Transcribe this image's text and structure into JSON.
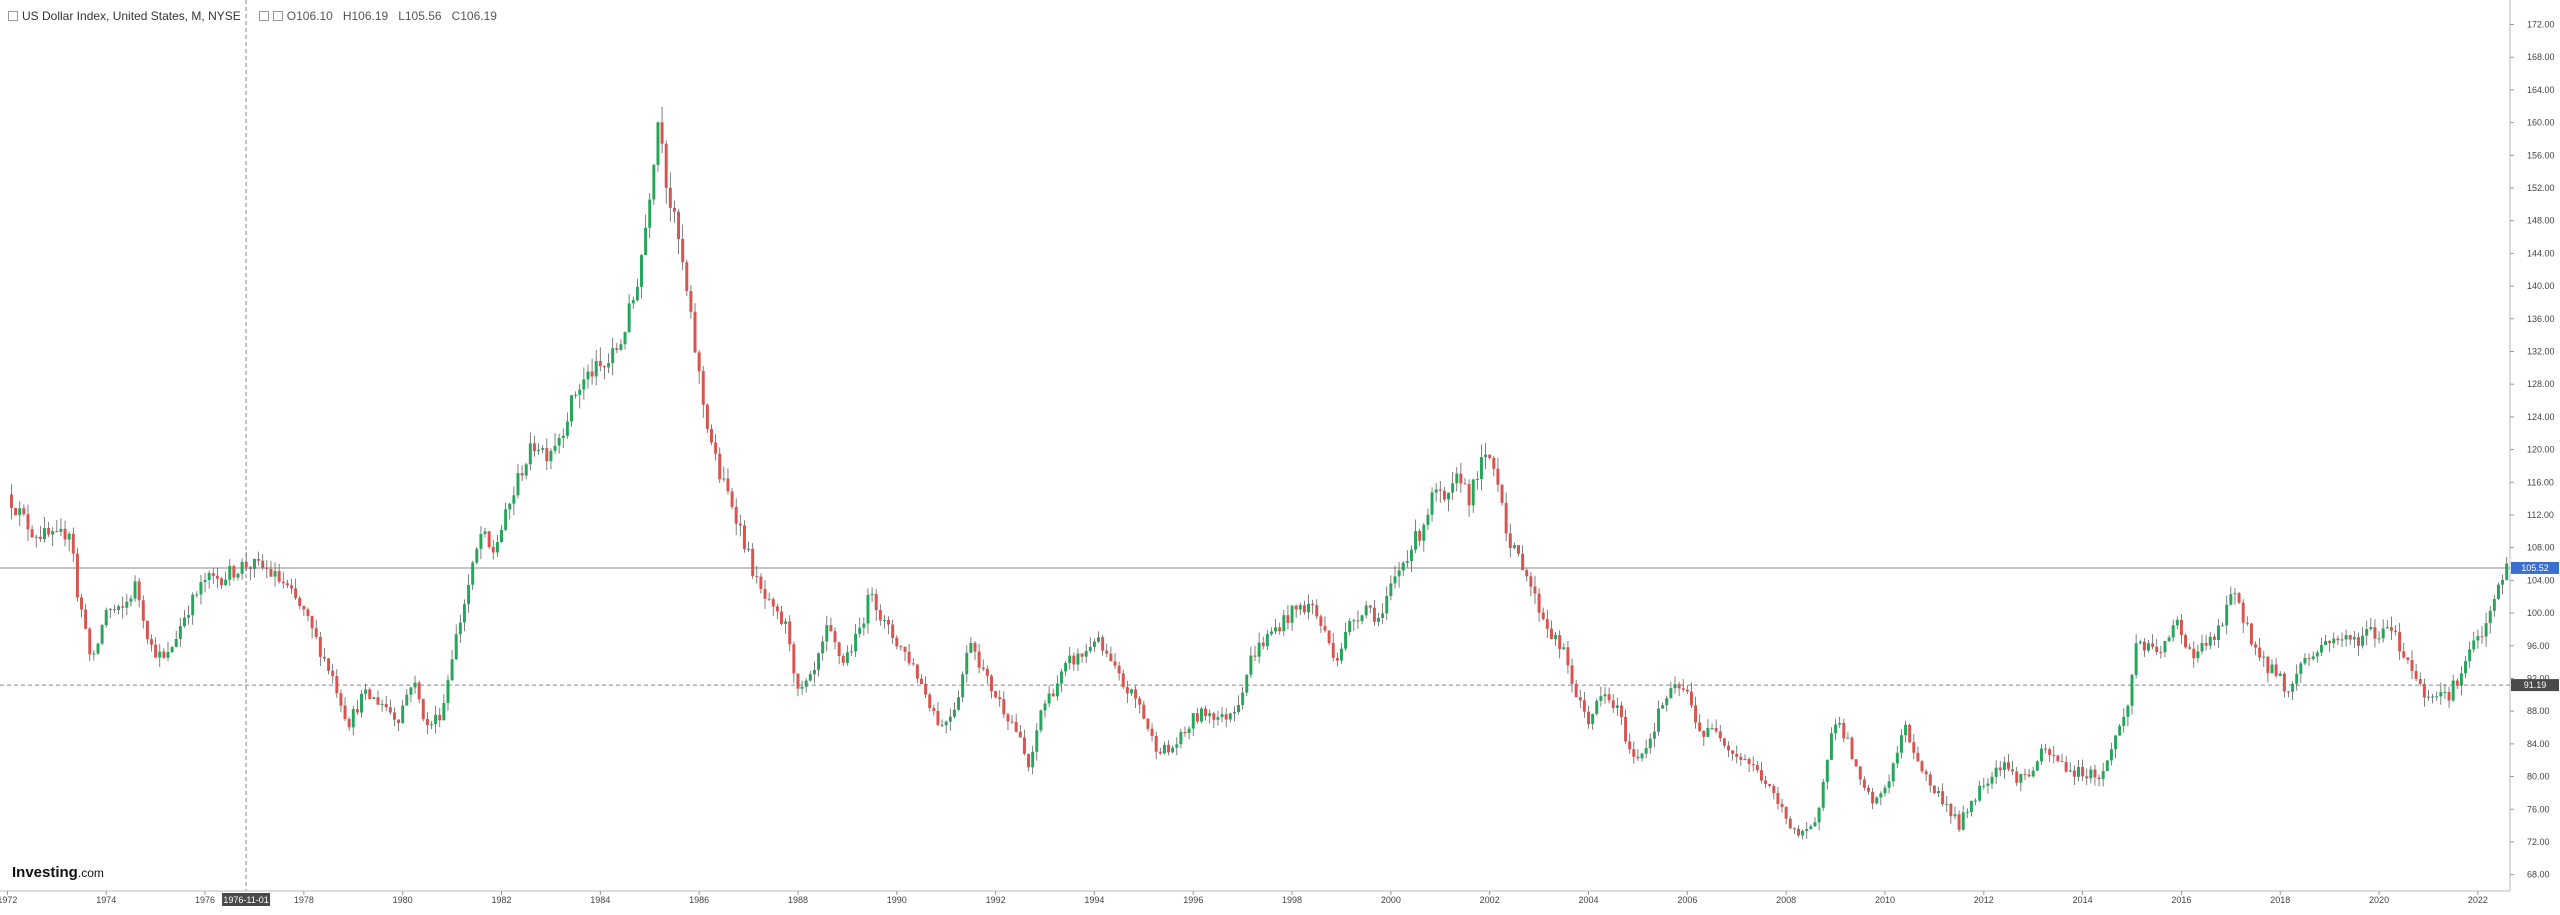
{
  "legend": {
    "title": "US Dollar Index, United States, M, NYSE",
    "open": "O106.10",
    "high": "H106.19",
    "low": "L105.56",
    "close": "C106.19"
  },
  "logo": {
    "brand": "Investing",
    "domain": ".com"
  },
  "crosshair": {
    "date_label": "1976-11-01",
    "x": 1976.83,
    "price_label": "91.19",
    "y": 91.19
  },
  "last_price": {
    "label": "105.52",
    "value": 105.52
  },
  "colors": {
    "up": "#26a65b",
    "down": "#d9534f",
    "last_price_bg": "#3a6fd0",
    "crosshair_bg": "#4a4a4a"
  },
  "chart_data": {
    "type": "candlestick",
    "title": "US Dollar Index, United States, M, NYSE",
    "xlim": [
      1971.85,
      2022.65
    ],
    "ylim": [
      66,
      175
    ],
    "x_ticks": [
      "1972",
      "1974",
      "1976",
      "1978",
      "1980",
      "1982",
      "1984",
      "1986",
      "1988",
      "1990",
      "1992",
      "1994",
      "1996",
      "1998",
      "2000",
      "2002",
      "2004",
      "2006",
      "2008",
      "2010",
      "2012",
      "2014",
      "2016",
      "2018",
      "2020",
      "2022"
    ],
    "y_ticks": [
      "68.00",
      "72.00",
      "76.00",
      "80.00",
      "84.00",
      "88.00",
      "92.00",
      "96.00",
      "100.00",
      "104.00",
      "108.00",
      "112.00",
      "116.00",
      "120.00",
      "124.00",
      "128.00",
      "132.00",
      "136.00",
      "140.00",
      "144.00",
      "148.00",
      "152.00",
      "156.00",
      "160.00",
      "164.00",
      "168.00",
      "172.00"
    ],
    "grid": false,
    "price_path": [
      [
        1972.0,
        114.5
      ],
      [
        1972.5,
        110.0
      ],
      [
        1973.0,
        109.0
      ],
      [
        1973.3,
        110.5
      ],
      [
        1973.4,
        102.0
      ],
      [
        1973.6,
        98.5
      ],
      [
        1973.7,
        93.0
      ],
      [
        1974.0,
        100.5
      ],
      [
        1974.3,
        100.0
      ],
      [
        1974.6,
        103.5
      ],
      [
        1974.9,
        96.0
      ],
      [
        1975.2,
        94.0
      ],
      [
        1975.6,
        100.0
      ],
      [
        1976.0,
        104.0
      ],
      [
        1976.4,
        104.5
      ],
      [
        1976.8,
        106.0
      ],
      [
        1977.2,
        105.5
      ],
      [
        1977.6,
        103.5
      ],
      [
        1978.0,
        100.0
      ],
      [
        1978.3,
        96.0
      ],
      [
        1978.6,
        92.0
      ],
      [
        1978.9,
        86.5
      ],
      [
        1979.2,
        90.0
      ],
      [
        1979.6,
        89.0
      ],
      [
        1979.9,
        87.0
      ],
      [
        1980.2,
        92.0
      ],
      [
        1980.5,
        86.0
      ],
      [
        1980.8,
        88.0
      ],
      [
        1981.0,
        95.0
      ],
      [
        1981.3,
        102.5
      ],
      [
        1981.6,
        110.0
      ],
      [
        1981.8,
        107.0
      ],
      [
        1982.1,
        112.0
      ],
      [
        1982.4,
        117.5
      ],
      [
        1982.7,
        121.0
      ],
      [
        1982.9,
        119.5
      ],
      [
        1983.2,
        122.0
      ],
      [
        1983.5,
        127.0
      ],
      [
        1983.8,
        129.5
      ],
      [
        1984.1,
        130.0
      ],
      [
        1984.4,
        133.0
      ],
      [
        1984.7,
        139.0
      ],
      [
        1984.9,
        146.5
      ],
      [
        1985.1,
        157.0
      ],
      [
        1985.2,
        162.0
      ],
      [
        1985.35,
        152.0
      ],
      [
        1985.6,
        145.0
      ],
      [
        1985.9,
        133.0
      ],
      [
        1986.1,
        125.0
      ],
      [
        1986.4,
        117.0
      ],
      [
        1986.7,
        113.0
      ],
      [
        1986.9,
        109.0
      ],
      [
        1987.2,
        103.0
      ],
      [
        1987.5,
        100.0
      ],
      [
        1987.8,
        98.0
      ],
      [
        1988.0,
        90.0
      ],
      [
        1988.3,
        92.0
      ],
      [
        1988.6,
        98.0
      ],
      [
        1988.9,
        94.0
      ],
      [
        1989.2,
        97.0
      ],
      [
        1989.5,
        103.0
      ],
      [
        1989.7,
        99.0
      ],
      [
        1990.0,
        96.5
      ],
      [
        1990.3,
        94.0
      ],
      [
        1990.6,
        90.0
      ],
      [
        1990.9,
        86.0
      ],
      [
        1991.2,
        89.0
      ],
      [
        1991.5,
        97.0
      ],
      [
        1991.8,
        92.0
      ],
      [
        1992.1,
        89.0
      ],
      [
        1992.4,
        86.0
      ],
      [
        1992.7,
        80.5
      ],
      [
        1992.9,
        88.0
      ],
      [
        1993.2,
        91.0
      ],
      [
        1993.5,
        94.0
      ],
      [
        1993.8,
        95.0
      ],
      [
        1994.0,
        97.0
      ],
      [
        1994.3,
        94.0
      ],
      [
        1994.6,
        91.0
      ],
      [
        1994.9,
        89.0
      ],
      [
        1995.2,
        84.0
      ],
      [
        1995.5,
        83.0
      ],
      [
        1995.8,
        85.0
      ],
      [
        1996.0,
        87.0
      ],
      [
        1996.3,
        88.0
      ],
      [
        1996.6,
        87.0
      ],
      [
        1996.9,
        89.0
      ],
      [
        1997.2,
        95.0
      ],
      [
        1997.5,
        97.0
      ],
      [
        1997.8,
        99.0
      ],
      [
        1998.1,
        100.5
      ],
      [
        1998.4,
        101.0
      ],
      [
        1998.7,
        97.0
      ],
      [
        1998.9,
        94.5
      ],
      [
        1999.2,
        99.0
      ],
      [
        1999.5,
        101.0
      ],
      [
        1999.8,
        99.0
      ],
      [
        2000.0,
        103.0
      ],
      [
        2000.3,
        107.0
      ],
      [
        2000.6,
        110.0
      ],
      [
        2000.9,
        115.0
      ],
      [
        2001.1,
        113.0
      ],
      [
        2001.4,
        117.0
      ],
      [
        2001.6,
        114.0
      ],
      [
        2001.8,
        118.0
      ],
      [
        2002.0,
        119.0
      ],
      [
        2002.2,
        116.0
      ],
      [
        2002.4,
        108.0
      ],
      [
        2002.7,
        106.0
      ],
      [
        2002.9,
        102.0
      ],
      [
        2003.2,
        98.0
      ],
      [
        2003.5,
        95.0
      ],
      [
        2003.8,
        89.0
      ],
      [
        2004.0,
        87.0
      ],
      [
        2004.3,
        90.0
      ],
      [
        2004.6,
        88.0
      ],
      [
        2004.9,
        82.0
      ],
      [
        2005.2,
        84.0
      ],
      [
        2005.5,
        89.0
      ],
      [
        2005.8,
        91.0
      ],
      [
        2006.0,
        90.0
      ],
      [
        2006.3,
        85.0
      ],
      [
        2006.6,
        86.0
      ],
      [
        2006.9,
        83.0
      ],
      [
        2007.2,
        82.0
      ],
      [
        2007.5,
        80.0
      ],
      [
        2007.8,
        77.0
      ],
      [
        2008.0,
        75.0
      ],
      [
        2008.3,
        72.5
      ],
      [
        2008.6,
        74.0
      ],
      [
        2008.8,
        82.0
      ],
      [
        2009.0,
        87.0
      ],
      [
        2009.2,
        85.0
      ],
      [
        2009.5,
        79.0
      ],
      [
        2009.8,
        76.5
      ],
      [
        2010.1,
        80.0
      ],
      [
        2010.4,
        86.0
      ],
      [
        2010.6,
        83.0
      ],
      [
        2010.9,
        79.0
      ],
      [
        2011.2,
        77.0
      ],
      [
        2011.5,
        74.0
      ],
      [
        2011.8,
        77.5
      ],
      [
        2012.1,
        80.0
      ],
      [
        2012.4,
        82.0
      ],
      [
        2012.6,
        80.0
      ],
      [
        2012.9,
        80.0
      ],
      [
        2013.2,
        83.0
      ],
      [
        2013.5,
        82.0
      ],
      [
        2013.8,
        80.5
      ],
      [
        2014.1,
        80.5
      ],
      [
        2014.4,
        80.0
      ],
      [
        2014.6,
        84.0
      ],
      [
        2014.9,
        88.0
      ],
      [
        2015.1,
        97.0
      ],
      [
        2015.4,
        95.0
      ],
      [
        2015.7,
        96.0
      ],
      [
        2015.9,
        99.0
      ],
      [
        2016.2,
        95.0
      ],
      [
        2016.5,
        96.0
      ],
      [
        2016.8,
        98.0
      ],
      [
        2017.0,
        102.5
      ],
      [
        2017.3,
        99.0
      ],
      [
        2017.6,
        94.0
      ],
      [
        2017.9,
        93.0
      ],
      [
        2018.2,
        90.0
      ],
      [
        2018.4,
        94.0
      ],
      [
        2018.7,
        95.0
      ],
      [
        2018.9,
        96.5
      ],
      [
        2019.2,
        97.0
      ],
      [
        2019.5,
        96.5
      ],
      [
        2019.8,
        98.0
      ],
      [
        2020.0,
        97.0
      ],
      [
        2020.2,
        99.5
      ],
      [
        2020.4,
        96.0
      ],
      [
        2020.7,
        93.0
      ],
      [
        2020.9,
        90.0
      ],
      [
        2021.1,
        90.5
      ],
      [
        2021.4,
        90.0
      ],
      [
        2021.7,
        93.0
      ],
      [
        2021.9,
        96.0
      ],
      [
        2022.2,
        98.5
      ],
      [
        2022.4,
        103.0
      ],
      [
        2022.58,
        105.5
      ]
    ]
  }
}
